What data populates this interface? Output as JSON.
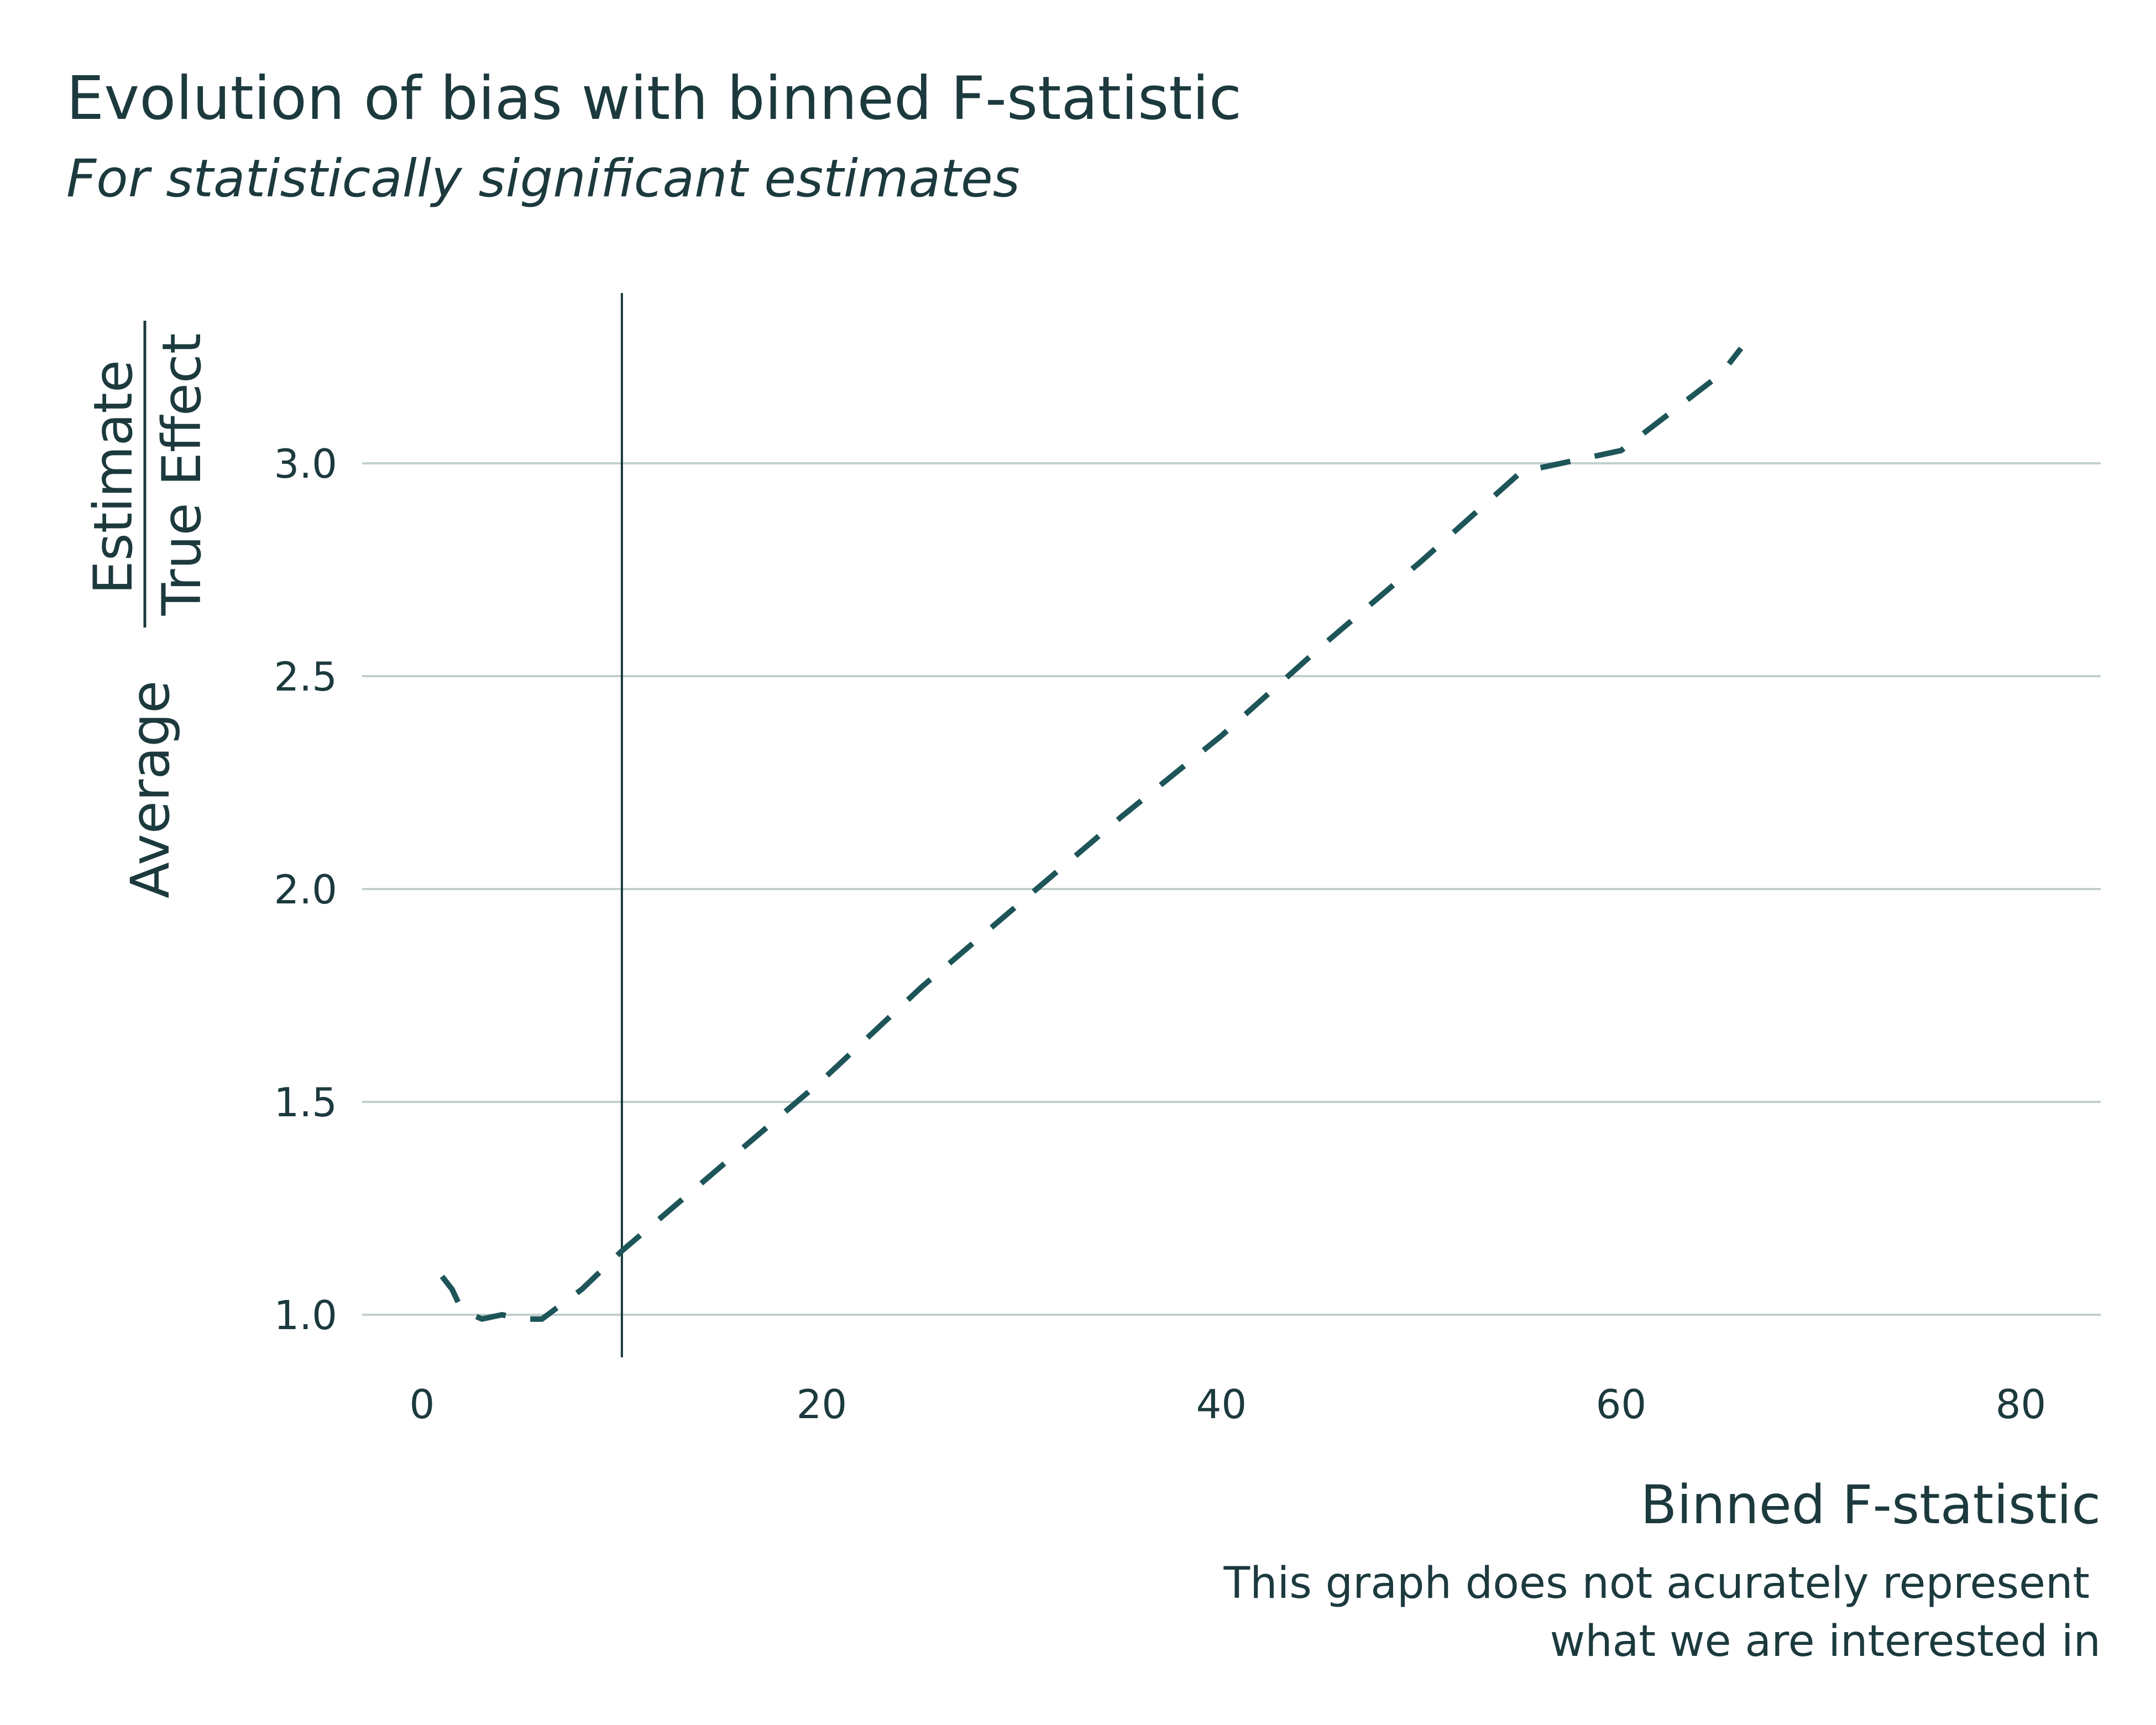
{
  "chart_data": {
    "type": "line",
    "title": "Evolution of bias with binned F-statistic",
    "subtitle": "For statistically significant estimates",
    "xlabel": "Binned F-statistic",
    "ylabel": {
      "prefix": "Average",
      "numerator": "Estimate",
      "denominator": "True Effect"
    },
    "caption": [
      "This graph does not acurately represent",
      "what we are interested in"
    ],
    "xlim": [
      -3,
      84
    ],
    "ylim": [
      0.9,
      3.4
    ],
    "x_ticks": [
      0,
      20,
      40,
      60,
      80
    ],
    "y_ticks": [
      1.0,
      1.5,
      2.0,
      2.5,
      3.0
    ],
    "y_tick_labels": [
      "1.0",
      "1.5",
      "2.0",
      "2.5",
      "3.0"
    ],
    "grid": "horizontal major",
    "reference_line_x": 10,
    "series": [
      {
        "x": [
          1.0,
          1.5,
          2.0,
          3.0,
          4.0,
          5.0,
          6.0,
          8.0,
          10.0,
          12.0,
          15.0,
          20.0,
          25.0,
          30.0,
          35.0,
          40.0,
          45.0,
          50.0,
          55.0,
          60.0,
          65.0,
          66.0
        ],
        "values": [
          1.09,
          1.06,
          1.01,
          0.99,
          1.0,
          0.99,
          0.99,
          1.06,
          1.15,
          1.23,
          1.35,
          1.55,
          1.77,
          1.97,
          2.17,
          2.36,
          2.57,
          2.77,
          2.98,
          3.03,
          3.21,
          3.27
        ],
        "color": "#1d5559",
        "line_style": "dashed"
      }
    ]
  }
}
